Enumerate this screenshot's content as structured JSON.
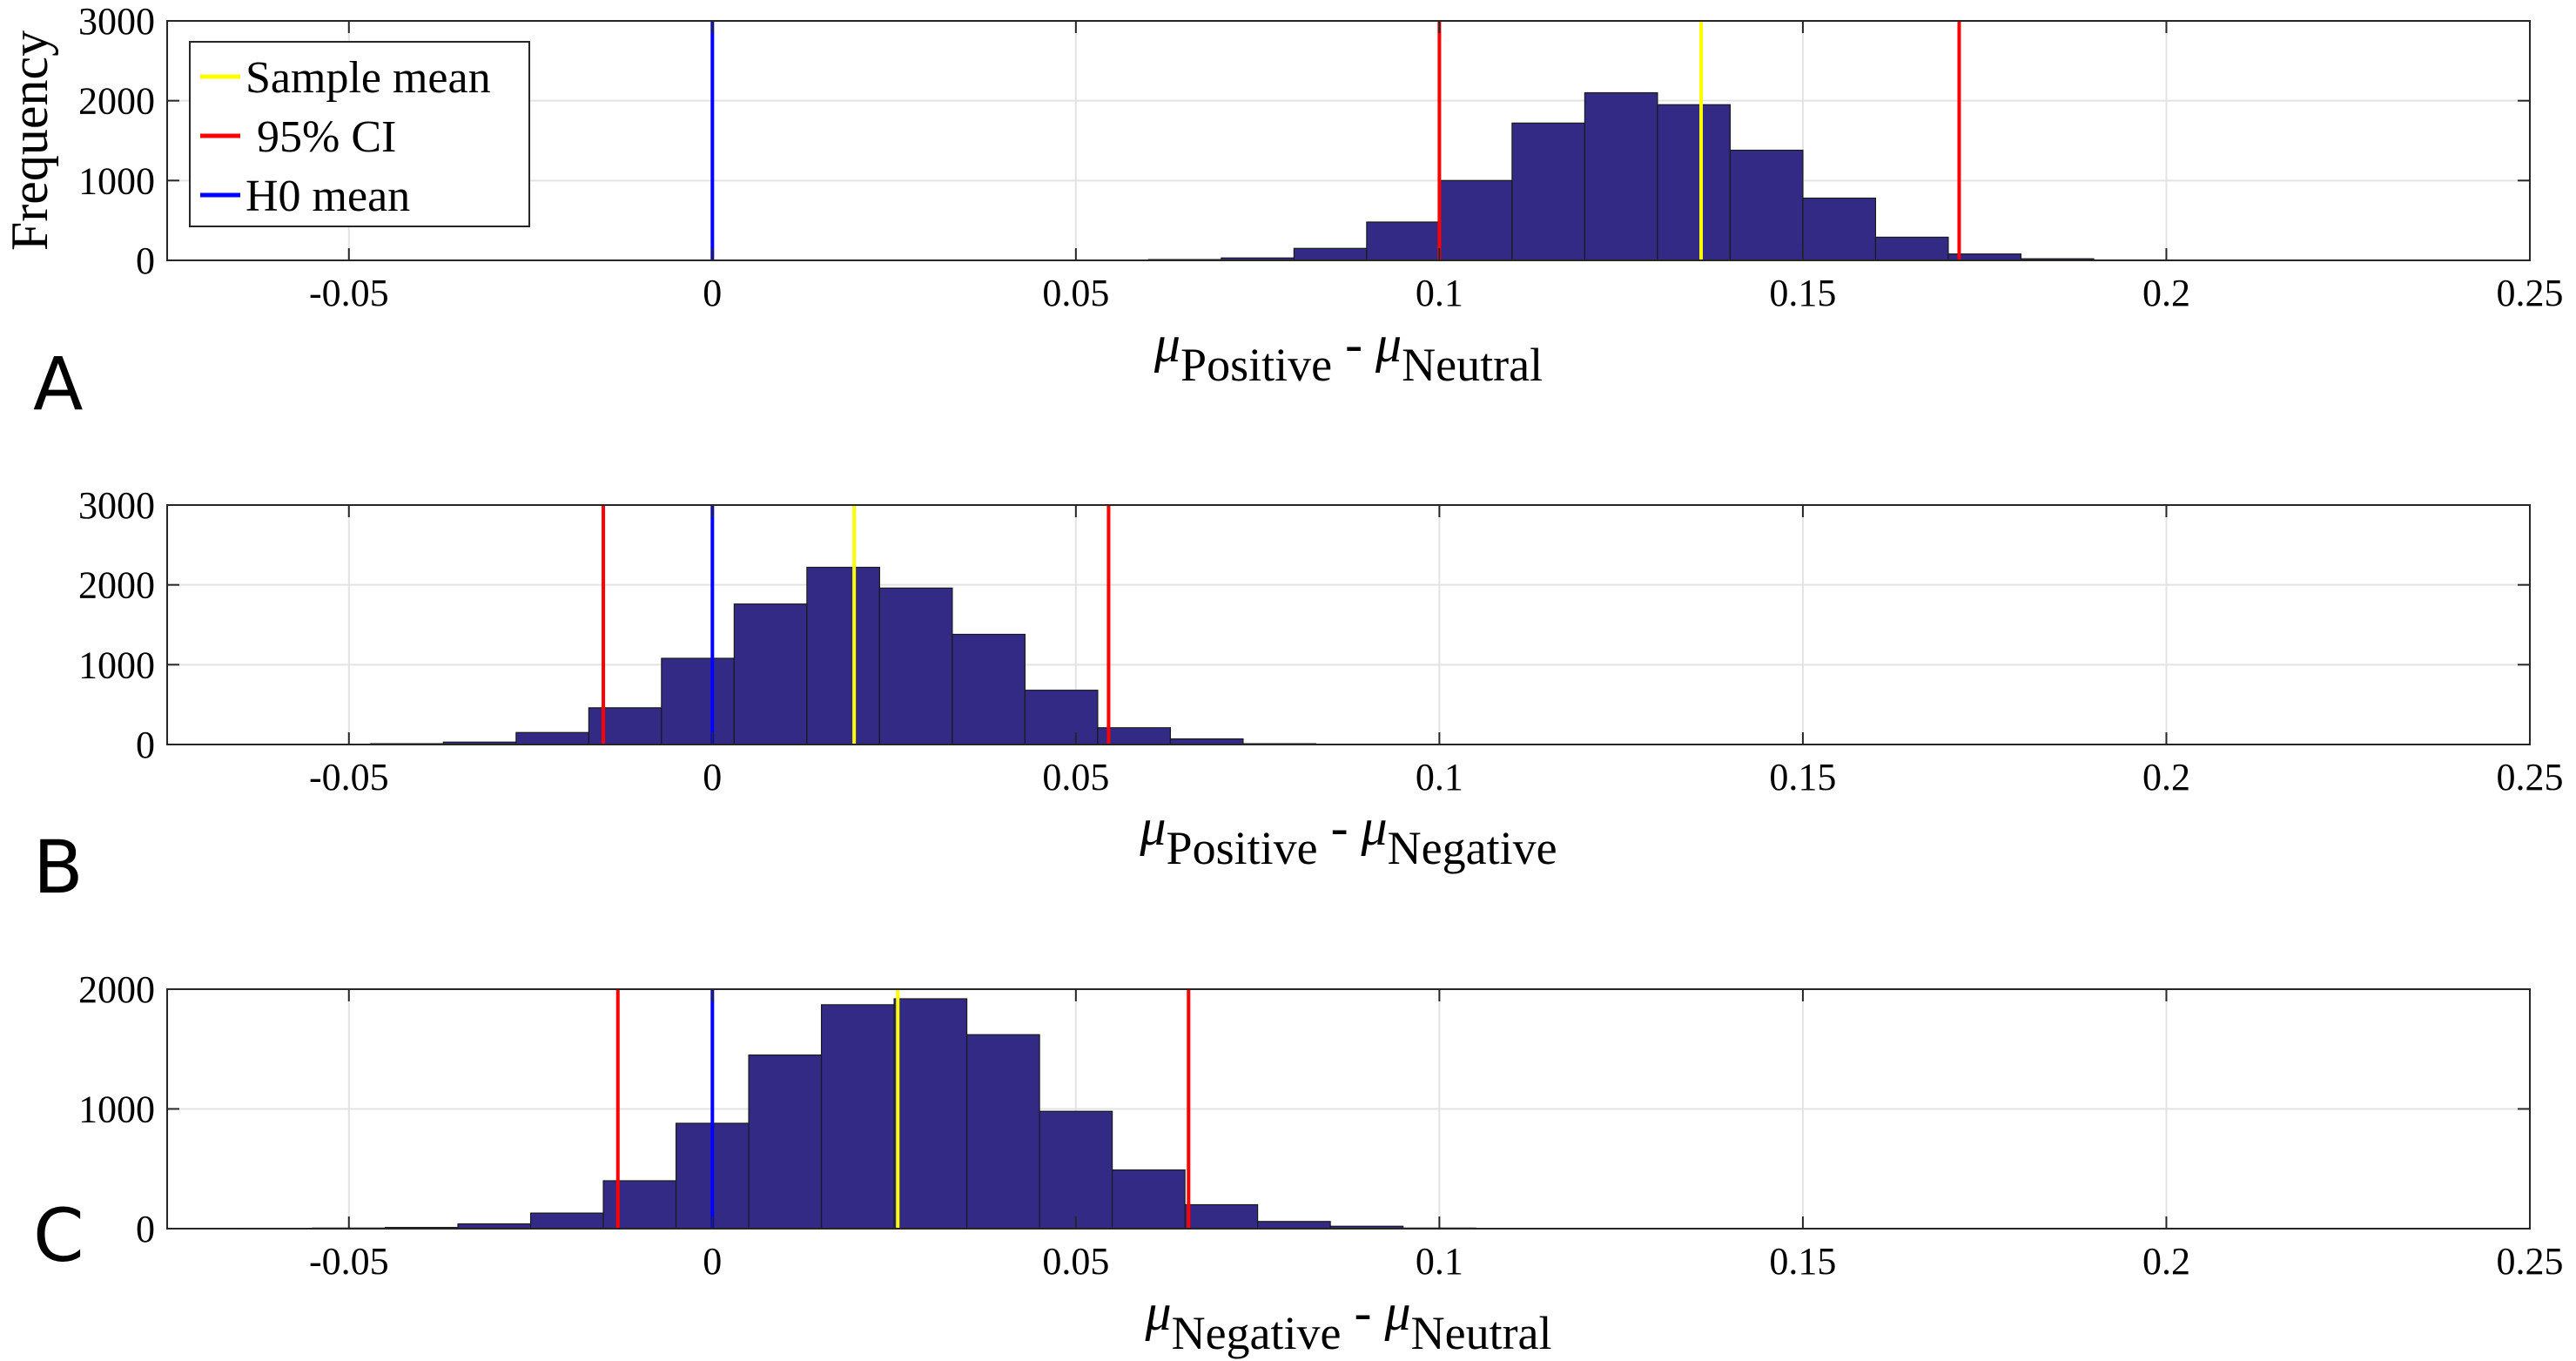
{
  "chart_data": [
    {
      "type": "bar",
      "panel_label": "A",
      "xlabel": {
        "main1": "μ",
        "sub1": "Positive",
        "minus": " - ",
        "main2": "μ",
        "sub2": "Neutral"
      },
      "ylabel": "Frequency",
      "xlim": [
        -0.075,
        0.25
      ],
      "ylim": [
        0,
        3000
      ],
      "xticks": [
        -0.05,
        0,
        0.05,
        0.1,
        0.15,
        0.2,
        0.25
      ],
      "xtick_labels": [
        "-0.05",
        "0",
        "0.05",
        "0.1",
        "0.15",
        "0.2",
        "0.25"
      ],
      "yticks": [
        0,
        1000,
        2000,
        3000
      ],
      "ytick_labels": [
        "0",
        "1000",
        "2000",
        "3000"
      ],
      "grid": true,
      "legend": {
        "placement": "top-left",
        "entries": [
          {
            "label": "Sample mean",
            "color": "#ffff00"
          },
          {
            "label": " 95% CI",
            "color": "#ff0000"
          },
          {
            "label": "H0 mean",
            "color": "#0000ff"
          }
        ]
      },
      "bin_edges": [
        0.05,
        0.06,
        0.07,
        0.08,
        0.09,
        0.1,
        0.11,
        0.12,
        0.13,
        0.14,
        0.15,
        0.16,
        0.17,
        0.18,
        0.19,
        0.2
      ],
      "counts": [
        4,
        10,
        30,
        150,
        480,
        1000,
        1720,
        2100,
        1950,
        1380,
        780,
        290,
        80,
        20,
        5
      ],
      "lines": [
        {
          "name": "Sample mean",
          "x": 0.136,
          "color": "#ffff00"
        },
        {
          "name": "95% CI lower",
          "x": 0.1,
          "color": "#ff0000"
        },
        {
          "name": "95% CI upper",
          "x": 0.1715,
          "color": "#ff0000"
        },
        {
          "name": "H0 mean",
          "x": 0,
          "color": "#0000ff"
        }
      ]
    },
    {
      "type": "bar",
      "panel_label": "B",
      "xlabel": {
        "main1": "μ",
        "sub1": "Positive",
        "minus": " - ",
        "main2": "μ",
        "sub2": "Negative"
      },
      "ylabel": "",
      "xlim": [
        -0.075,
        0.25
      ],
      "ylim": [
        0,
        3000
      ],
      "xticks": [
        -0.05,
        0,
        0.05,
        0.1,
        0.15,
        0.2,
        0.25
      ],
      "xtick_labels": [
        "-0.05",
        "0",
        "0.05",
        "0.1",
        "0.15",
        "0.2",
        "0.25"
      ],
      "yticks": [
        0,
        1000,
        2000,
        3000
      ],
      "ytick_labels": [
        "0",
        "1000",
        "2000",
        "3000"
      ],
      "grid": true,
      "bin_edges": [
        -0.057,
        -0.047,
        -0.037,
        -0.027,
        -0.017,
        -0.007,
        0.003,
        0.013,
        0.023,
        0.033,
        0.043,
        0.053,
        0.063,
        0.073,
        0.083
      ],
      "counts": [
        3,
        10,
        30,
        150,
        460,
        1080,
        1760,
        2220,
        1960,
        1380,
        680,
        210,
        70,
        10
      ],
      "lines": [
        {
          "name": "Sample mean",
          "x": 0.0195,
          "color": "#ffff00"
        },
        {
          "name": "95% CI lower",
          "x": -0.015,
          "color": "#ff0000"
        },
        {
          "name": "95% CI upper",
          "x": 0.0545,
          "color": "#ff0000"
        },
        {
          "name": "H0 mean",
          "x": 0,
          "color": "#0000ff"
        }
      ]
    },
    {
      "type": "bar",
      "panel_label": "C",
      "xlabel": {
        "main1": "μ",
        "sub1": "Negative",
        "minus": " - ",
        "main2": "μ",
        "sub2": "Neutral"
      },
      "ylabel": "",
      "xlim": [
        -0.075,
        0.25
      ],
      "ylim": [
        0,
        2000
      ],
      "xticks": [
        -0.05,
        0,
        0.05,
        0.1,
        0.15,
        0.2,
        0.25
      ],
      "xtick_labels": [
        "-0.05",
        "0",
        "0.05",
        "0.1",
        "0.15",
        "0.2",
        "0.25"
      ],
      "yticks": [
        0,
        1000,
        2000
      ],
      "ytick_labels": [
        "0",
        "1000",
        "2000"
      ],
      "grid": true,
      "bin_edges": [
        -0.075,
        -0.065,
        -0.055,
        -0.045,
        -0.035,
        -0.025,
        -0.015,
        -0.005,
        0.005,
        0.015,
        0.025,
        0.035,
        0.045,
        0.055,
        0.065,
        0.075,
        0.085,
        0.095,
        0.105
      ],
      "counts": [
        2,
        3,
        5,
        10,
        40,
        130,
        400,
        880,
        1450,
        1870,
        1920,
        1620,
        980,
        490,
        200,
        60,
        20,
        5
      ],
      "lines": [
        {
          "name": "Sample mean",
          "x": 0.0255,
          "color": "#ffff00"
        },
        {
          "name": "95% CI lower",
          "x": -0.013,
          "color": "#ff0000"
        },
        {
          "name": "95% CI upper",
          "x": 0.0655,
          "color": "#ff0000"
        },
        {
          "name": "H0 mean",
          "x": 0,
          "color": "#0000ff"
        }
      ]
    }
  ],
  "colors": {
    "bar_fill": "#332a85",
    "bar_edge": "#1a1a1a",
    "grid": "#e3e3e3",
    "axis": "#262626"
  }
}
